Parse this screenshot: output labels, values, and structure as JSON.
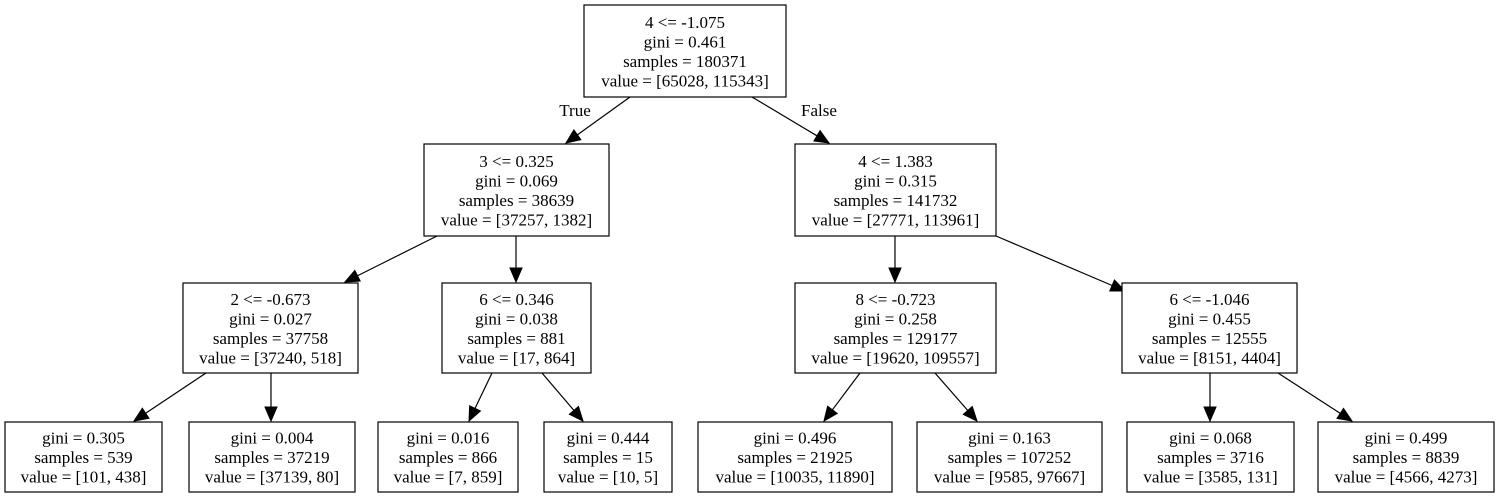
{
  "nodes": [
    {
      "id": "n0",
      "lines": [
        "4 <= -1.075",
        "gini = 0.461",
        "samples = 180371",
        "value = [65028, 115343]"
      ]
    },
    {
      "id": "n1",
      "lines": [
        "3 <= 0.325",
        "gini = 0.069",
        "samples = 38639",
        "value = [37257, 1382]"
      ]
    },
    {
      "id": "n2",
      "lines": [
        "4 <= 1.383",
        "gini = 0.315",
        "samples = 141732",
        "value = [27771, 113961]"
      ]
    },
    {
      "id": "n3",
      "lines": [
        "2 <= -0.673",
        "gini = 0.027",
        "samples = 37758",
        "value = [37240, 518]"
      ]
    },
    {
      "id": "n4",
      "lines": [
        "6 <= 0.346",
        "gini = 0.038",
        "samples = 881",
        "value = [17, 864]"
      ]
    },
    {
      "id": "n5",
      "lines": [
        "8 <= -0.723",
        "gini = 0.258",
        "samples = 129177",
        "value = [19620, 109557]"
      ]
    },
    {
      "id": "n6",
      "lines": [
        "6 <= -1.046",
        "gini = 0.455",
        "samples = 12555",
        "value = [8151, 4404]"
      ]
    },
    {
      "id": "n7",
      "lines": [
        "gini = 0.305",
        "samples = 539",
        "value = [101, 438]"
      ]
    },
    {
      "id": "n8",
      "lines": [
        "gini = 0.004",
        "samples = 37219",
        "value = [37139, 80]"
      ]
    },
    {
      "id": "n9",
      "lines": [
        "gini = 0.016",
        "samples = 866",
        "value = [7, 859]"
      ]
    },
    {
      "id": "n10",
      "lines": [
        "gini = 0.444",
        "samples = 15",
        "value = [10, 5]"
      ]
    },
    {
      "id": "n11",
      "lines": [
        "gini = 0.496",
        "samples = 21925",
        "value = [10035, 11890]"
      ]
    },
    {
      "id": "n12",
      "lines": [
        "gini = 0.163",
        "samples = 107252",
        "value = [9585, 97667]"
      ]
    },
    {
      "id": "n13",
      "lines": [
        "gini = 0.068",
        "samples = 3716",
        "value = [3585, 131]"
      ]
    },
    {
      "id": "n14",
      "lines": [
        "gini = 0.499",
        "samples = 8839",
        "value = [4566, 4273]"
      ]
    }
  ],
  "edges": [
    {
      "from": "n0",
      "to": "n1",
      "label": "True"
    },
    {
      "from": "n0",
      "to": "n2",
      "label": "False"
    },
    {
      "from": "n1",
      "to": "n3",
      "label": ""
    },
    {
      "from": "n1",
      "to": "n4",
      "label": ""
    },
    {
      "from": "n2",
      "to": "n5",
      "label": ""
    },
    {
      "from": "n2",
      "to": "n6",
      "label": ""
    },
    {
      "from": "n3",
      "to": "n7",
      "label": ""
    },
    {
      "from": "n3",
      "to": "n8",
      "label": ""
    },
    {
      "from": "n4",
      "to": "n9",
      "label": ""
    },
    {
      "from": "n4",
      "to": "n10",
      "label": ""
    },
    {
      "from": "n5",
      "to": "n11",
      "label": ""
    },
    {
      "from": "n5",
      "to": "n12",
      "label": ""
    },
    {
      "from": "n6",
      "to": "n13",
      "label": ""
    },
    {
      "from": "n6",
      "to": "n14",
      "label": ""
    }
  ]
}
